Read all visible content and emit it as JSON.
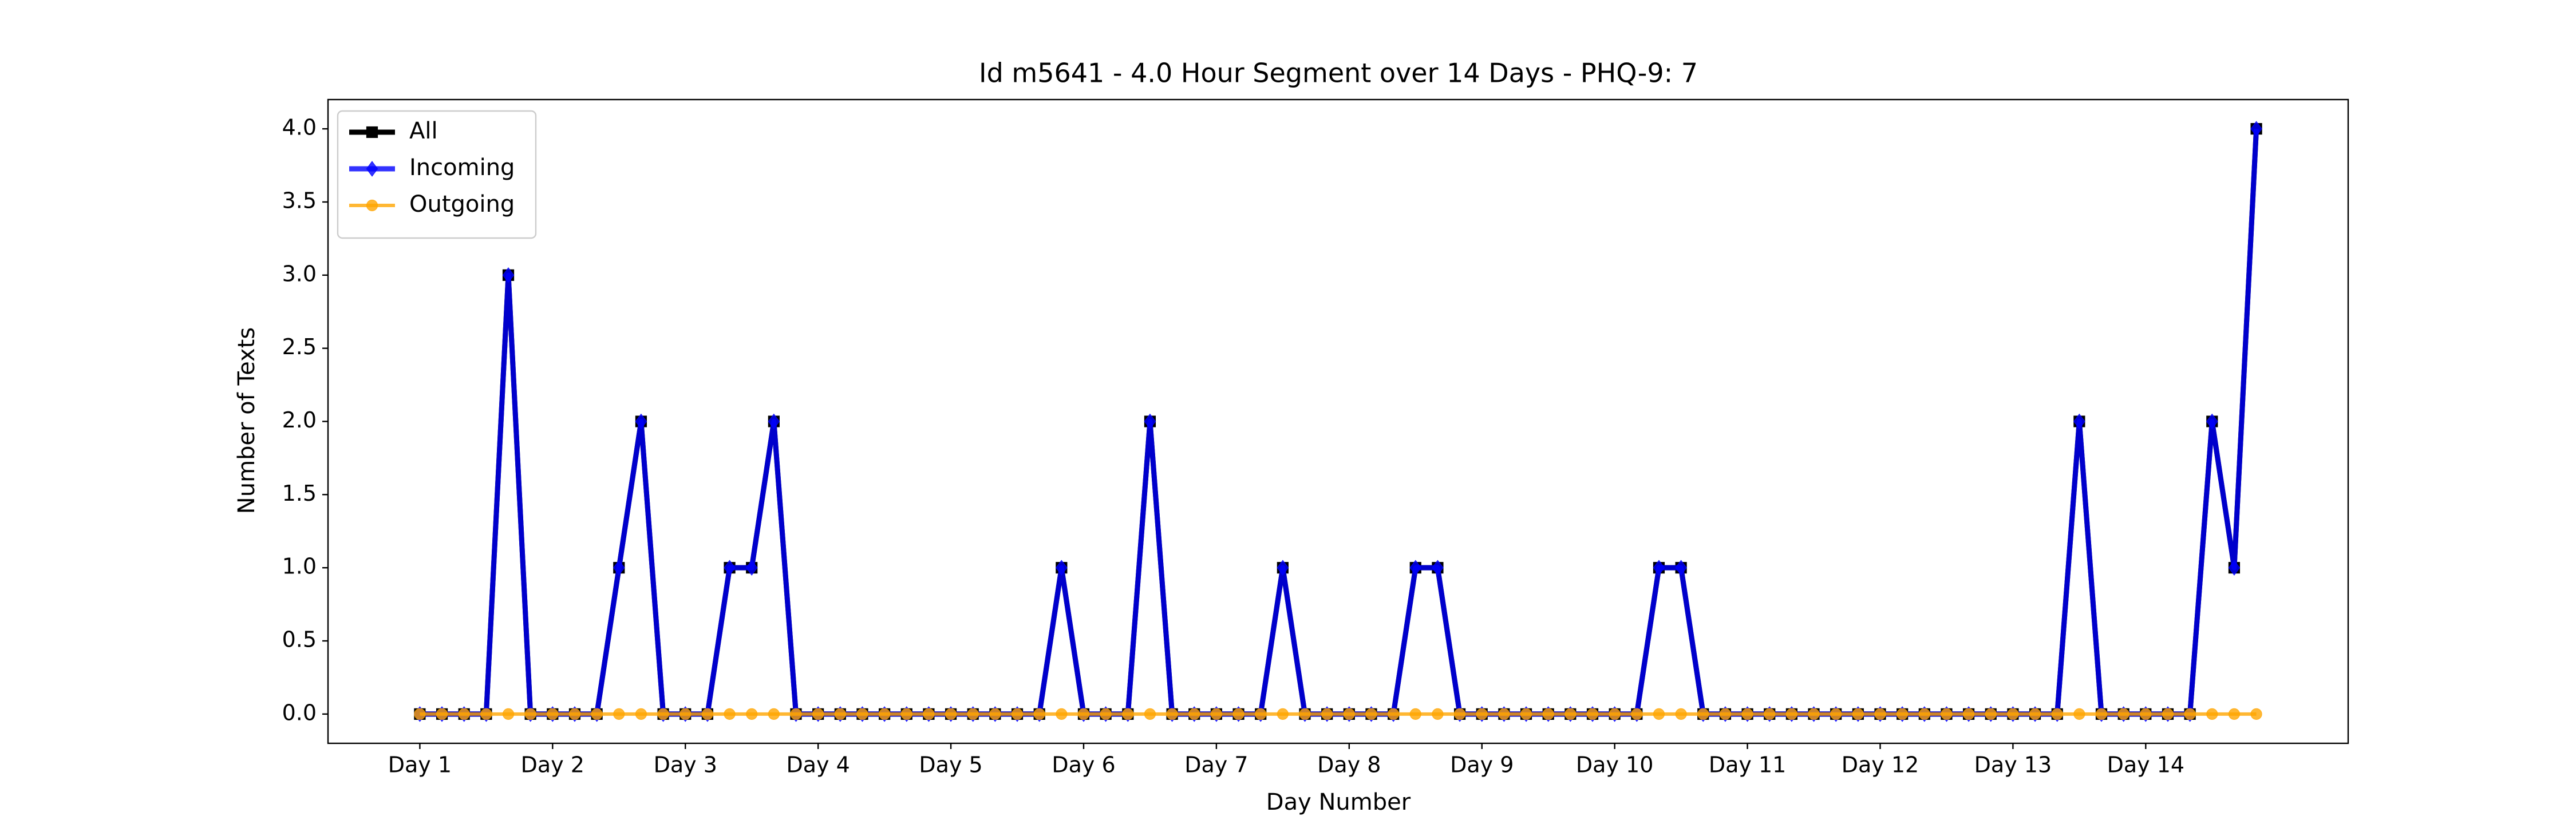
{
  "chart_data": {
    "type": "line",
    "title": "Id m5641 - 4.0 Hour Segment over 14 Days - PHQ-9: 7",
    "x_label": "Day Number",
    "y_label": "Number of Texts",
    "x": [
      0,
      1,
      2,
      3,
      4,
      5,
      6,
      7,
      8,
      9,
      10,
      11,
      12,
      13,
      14,
      15,
      16,
      17,
      18,
      19,
      20,
      21,
      22,
      23,
      24,
      25,
      26,
      27,
      28,
      29,
      30,
      31,
      32,
      33,
      34,
      35,
      36,
      37,
      38,
      39,
      40,
      41,
      42,
      43,
      44,
      45,
      46,
      47,
      48,
      49,
      50,
      51,
      52,
      53,
      54,
      55,
      56,
      57,
      58,
      59,
      60,
      61,
      62,
      63,
      64,
      65,
      66,
      67,
      68,
      69,
      70,
      71,
      72,
      73,
      74,
      75,
      76,
      77,
      78,
      79,
      80,
      81,
      82,
      83
    ],
    "series": [
      {
        "name": "All",
        "color": "#000000",
        "marker": "square",
        "values": [
          0,
          0,
          0,
          0,
          3,
          0,
          0,
          0,
          0,
          1,
          2,
          0,
          0,
          0,
          1,
          1,
          2,
          0,
          0,
          0,
          0,
          0,
          0,
          0,
          0,
          0,
          0,
          0,
          0,
          1,
          0,
          0,
          0,
          2,
          0,
          0,
          0,
          0,
          0,
          1,
          0,
          0,
          0,
          0,
          0,
          1,
          1,
          0,
          0,
          0,
          0,
          0,
          0,
          0,
          0,
          0,
          1,
          1,
          0,
          0,
          0,
          0,
          0,
          0,
          0,
          0,
          0,
          0,
          0,
          0,
          0,
          0,
          0,
          0,
          0,
          2,
          0,
          0,
          0,
          0,
          0,
          2,
          1,
          4
        ]
      },
      {
        "name": "Incoming",
        "color": "#0000ff",
        "marker": "diamond",
        "values": [
          0,
          0,
          0,
          0,
          3,
          0,
          0,
          0,
          0,
          1,
          2,
          0,
          0,
          0,
          1,
          1,
          2,
          0,
          0,
          0,
          0,
          0,
          0,
          0,
          0,
          0,
          0,
          0,
          0,
          1,
          0,
          0,
          0,
          2,
          0,
          0,
          0,
          0,
          0,
          1,
          0,
          0,
          0,
          0,
          0,
          1,
          1,
          0,
          0,
          0,
          0,
          0,
          0,
          0,
          0,
          0,
          1,
          1,
          0,
          0,
          0,
          0,
          0,
          0,
          0,
          0,
          0,
          0,
          0,
          0,
          0,
          0,
          0,
          0,
          0,
          2,
          0,
          0,
          0,
          0,
          0,
          2,
          1,
          4
        ]
      },
      {
        "name": "Outgoing",
        "color": "#ffa500",
        "marker": "circle",
        "values": [
          0,
          0,
          0,
          0,
          0,
          0,
          0,
          0,
          0,
          0,
          0,
          0,
          0,
          0,
          0,
          0,
          0,
          0,
          0,
          0,
          0,
          0,
          0,
          0,
          0,
          0,
          0,
          0,
          0,
          0,
          0,
          0,
          0,
          0,
          0,
          0,
          0,
          0,
          0,
          0,
          0,
          0,
          0,
          0,
          0,
          0,
          0,
          0,
          0,
          0,
          0,
          0,
          0,
          0,
          0,
          0,
          0,
          0,
          0,
          0,
          0,
          0,
          0,
          0,
          0,
          0,
          0,
          0,
          0,
          0,
          0,
          0,
          0,
          0,
          0,
          0,
          0,
          0,
          0,
          0,
          0,
          0,
          0,
          0
        ]
      }
    ],
    "xlim": [
      -4.15,
      87.15
    ],
    "xticks": [
      {
        "value": 0,
        "label": "Day 1"
      },
      {
        "value": 6,
        "label": "Day 2"
      },
      {
        "value": 12,
        "label": "Day 3"
      },
      {
        "value": 18,
        "label": "Day 4"
      },
      {
        "value": 24,
        "label": "Day 5"
      },
      {
        "value": 30,
        "label": "Day 6"
      },
      {
        "value": 36,
        "label": "Day 7"
      },
      {
        "value": 42,
        "label": "Day 8"
      },
      {
        "value": 48,
        "label": "Day 9"
      },
      {
        "value": 54,
        "label": "Day 10"
      },
      {
        "value": 60,
        "label": "Day 11"
      },
      {
        "value": 66,
        "label": "Day 12"
      },
      {
        "value": 72,
        "label": "Day 13"
      },
      {
        "value": 78,
        "label": "Day 14"
      }
    ],
    "ylim": [
      -0.2,
      4.2
    ],
    "yticks": [
      {
        "value": 0,
        "label": "0.0"
      },
      0.5,
      {
        "value": 1,
        "label": "1.0"
      },
      1.5,
      {
        "value": 2,
        "label": "2.0"
      },
      2.5,
      {
        "value": 3,
        "label": "3.0"
      },
      3.5,
      {
        "value": 4,
        "label": "4.0"
      }
    ],
    "legend": "upper left",
    "grid": false
  }
}
